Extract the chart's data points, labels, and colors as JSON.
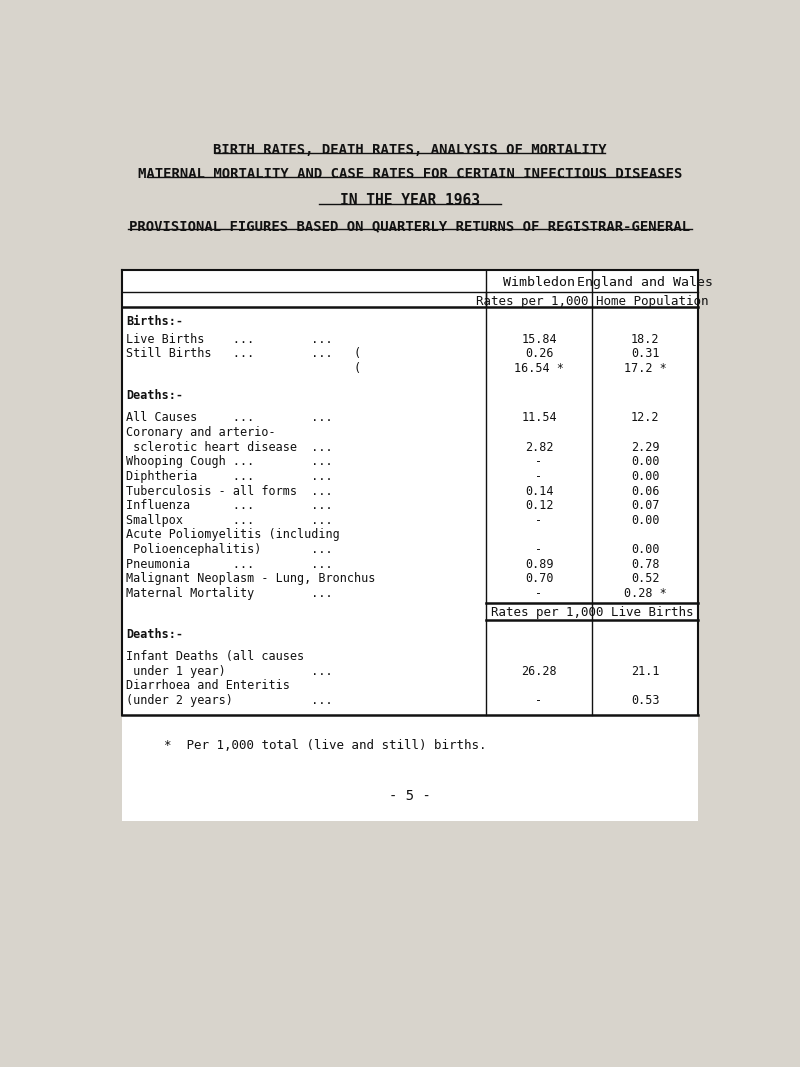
{
  "title1": "BIRTH RATES, DEATH RATES, ANALYSIS OF MORTALITY",
  "title2": "MATERNAL MORTALITY AND CASE RATES FOR CERTAIN INFECTIOUS DISEASES",
  "title3": "IN THE YEAR 1963",
  "title4": "PROVISIONAL FIGURES BASED ON QUARTERLY RETURNS OF REGISTRAR-GENERAL",
  "bg_color": "#d8d4cc",
  "table_bg": "#e8e4dc",
  "rows": [
    {
      "label": "Births:-",
      "wimbledon": "",
      "england": "",
      "section_header": true,
      "spacer_before": 8
    },
    {
      "label": "Live Births    ...        ...",
      "wimbledon": "15.84",
      "england": "18.2",
      "spacer_before": 4
    },
    {
      "label": "Still Births   ...        ...   (",
      "wimbledon": "0.26",
      "england": "0.31",
      "spacer_before": 0
    },
    {
      "label": "                                (",
      "wimbledon": "16.54 *",
      "england": "17.2 *",
      "spacer_before": 0
    },
    {
      "label": "Deaths:-",
      "wimbledon": "",
      "england": "",
      "section_header": true,
      "spacer_before": 16
    },
    {
      "label": "All Causes     ...        ...",
      "wimbledon": "11.54",
      "england": "12.2",
      "spacer_before": 10
    },
    {
      "label": "Coronary and arterio-",
      "wimbledon": "",
      "england": "",
      "spacer_before": 0
    },
    {
      "label": " sclerotic heart disease  ...",
      "wimbledon": "2.82",
      "england": "2.29",
      "spacer_before": 0
    },
    {
      "label": "Whooping Cough ...        ...",
      "wimbledon": "-",
      "england": "0.00",
      "spacer_before": 0
    },
    {
      "label": "Diphtheria     ...        ...",
      "wimbledon": "-",
      "england": "0.00",
      "spacer_before": 0
    },
    {
      "label": "Tuberculosis - all forms  ...",
      "wimbledon": "0.14",
      "england": "0.06",
      "spacer_before": 0
    },
    {
      "label": "Influenza      ...        ...",
      "wimbledon": "0.12",
      "england": "0.07",
      "spacer_before": 0
    },
    {
      "label": "Smallpox       ...        ...",
      "wimbledon": "-",
      "england": "0.00",
      "spacer_before": 0
    },
    {
      "label": "Acute Poliomyelitis (including",
      "wimbledon": "",
      "england": "",
      "spacer_before": 0
    },
    {
      "label": " Polioencephalitis)       ...",
      "wimbledon": "-",
      "england": "0.00",
      "spacer_before": 0
    },
    {
      "label": "Pneumonia      ...        ...",
      "wimbledon": "0.89",
      "england": "0.78",
      "spacer_before": 0
    },
    {
      "label": "Malignant Neoplasm - Lung, Bronchus",
      "wimbledon": "0.70",
      "england": "0.52",
      "spacer_before": 0
    },
    {
      "label": "Maternal Mortality        ...",
      "wimbledon": "-",
      "england": "0.28 *",
      "spacer_before": 0
    }
  ],
  "rows2": [
    {
      "label": "Deaths:-",
      "wimbledon": "",
      "england": "",
      "section_header": true,
      "spacer_before": 8
    },
    {
      "label": "Infant Deaths (all causes",
      "wimbledon": "",
      "england": "",
      "spacer_before": 10
    },
    {
      "label": " under 1 year)            ...",
      "wimbledon": "26.28",
      "england": "21.1",
      "spacer_before": 0
    },
    {
      "label": "Diarrhoea and Enteritis",
      "wimbledon": "",
      "england": "",
      "spacer_before": 0
    },
    {
      "label": "(under 2 years)           ...",
      "wimbledon": "-",
      "england": "0.53",
      "spacer_before": 0
    }
  ],
  "footnote": "*  Per 1,000 total (live and still) births.",
  "page_num": "- 5 -"
}
